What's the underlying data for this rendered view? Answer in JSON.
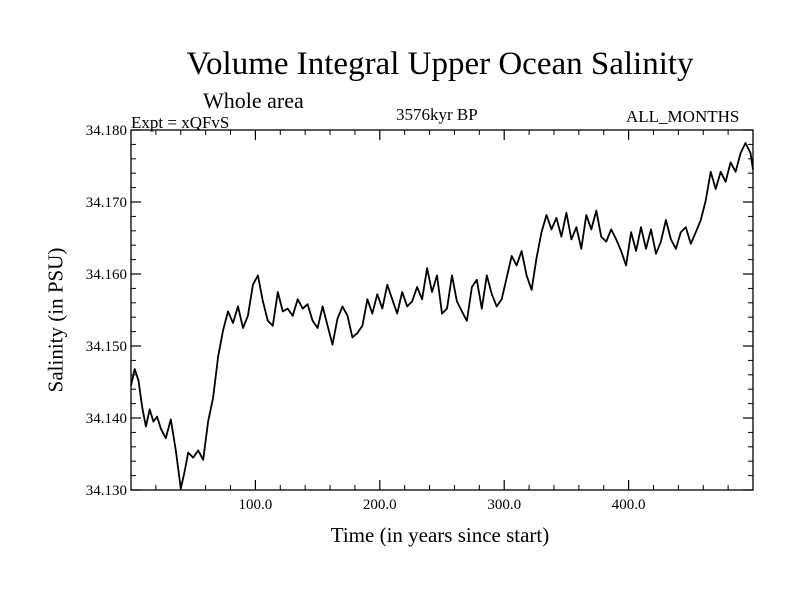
{
  "chart_data": {
    "type": "line",
    "title": "Volume Integral Upper Ocean Salinity",
    "subtitle": "Whole area",
    "experiment": "Expt = xQFvS",
    "period": "3576kyr BP",
    "months": "ALL_MONTHS",
    "xlabel": "Time (in years since start)",
    "ylabel": "Salinity (in PSU)",
    "xlim": [
      0,
      500
    ],
    "ylim": [
      34.13,
      34.18
    ],
    "xticks": [
      100,
      200,
      300,
      400
    ],
    "xtick_labels": [
      "100.0",
      "200.0",
      "300.0",
      "400.0"
    ],
    "yticks": [
      34.13,
      34.14,
      34.15,
      34.16,
      34.17,
      34.18
    ],
    "ytick_labels": [
      "34.130",
      "34.140",
      "34.150",
      "34.160",
      "34.170",
      "34.180"
    ],
    "series": [
      {
        "name": "Salinity",
        "x": [
          0,
          3,
          6,
          9,
          12,
          15,
          18,
          21,
          24,
          28,
          32,
          36,
          40,
          43,
          46,
          50,
          54,
          58,
          62,
          66,
          70,
          74,
          78,
          82,
          86,
          90,
          94,
          98,
          102,
          106,
          110,
          114,
          118,
          122,
          126,
          130,
          134,
          138,
          142,
          146,
          150,
          154,
          158,
          162,
          166,
          170,
          174,
          178,
          182,
          186,
          190,
          194,
          198,
          202,
          206,
          210,
          214,
          218,
          222,
          226,
          230,
          234,
          238,
          242,
          246,
          250,
          254,
          258,
          262,
          266,
          270,
          274,
          278,
          282,
          286,
          290,
          294,
          298,
          302,
          306,
          310,
          314,
          318,
          322,
          326,
          330,
          334,
          338,
          342,
          346,
          350,
          354,
          358,
          362,
          366,
          370,
          374,
          378,
          382,
          386,
          390,
          394,
          398,
          402,
          406,
          410,
          414,
          418,
          422,
          426,
          430,
          434,
          438,
          442,
          446,
          450,
          454,
          458,
          462,
          466,
          470,
          474,
          478,
          482,
          486,
          490,
          494,
          498,
          500
        ],
        "values": [
          34.1445,
          34.1468,
          34.1452,
          34.1415,
          34.1388,
          34.1412,
          34.1395,
          34.1402,
          34.1385,
          34.1372,
          34.1398,
          34.1355,
          34.1302,
          34.1325,
          34.1352,
          34.1345,
          34.1355,
          34.1342,
          34.1395,
          34.1428,
          34.1485,
          34.1522,
          34.1548,
          34.1532,
          34.1555,
          34.1525,
          34.1542,
          34.1585,
          34.1598,
          34.1562,
          34.1535,
          34.1528,
          34.1575,
          34.1548,
          34.1552,
          34.1542,
          34.1565,
          34.1552,
          34.1558,
          34.1535,
          34.1525,
          34.1555,
          34.1528,
          34.1502,
          34.1538,
          34.1555,
          34.1542,
          34.1512,
          34.1518,
          34.1528,
          34.1565,
          34.1545,
          34.1572,
          34.1552,
          34.1585,
          34.1565,
          34.1545,
          34.1575,
          34.1555,
          34.1562,
          34.1582,
          34.1565,
          34.1608,
          34.1575,
          34.1598,
          34.1545,
          34.1552,
          34.1598,
          34.1562,
          34.1548,
          34.1535,
          34.1582,
          34.1592,
          34.1552,
          34.1598,
          34.1572,
          34.1555,
          34.1565,
          34.1595,
          34.1625,
          34.1612,
          34.1632,
          34.1598,
          34.1578,
          34.1622,
          34.1658,
          34.1682,
          34.1662,
          34.1678,
          34.1652,
          34.1685,
          34.1648,
          34.1665,
          34.1635,
          34.1682,
          34.1662,
          34.1688,
          34.1652,
          34.1645,
          34.1662,
          34.1648,
          34.1632,
          34.1612,
          34.1658,
          34.1632,
          34.1665,
          34.1635,
          34.1662,
          34.1628,
          34.1645,
          34.1675,
          34.1648,
          34.1635,
          34.1658,
          34.1665,
          34.1642,
          34.1658,
          34.1675,
          34.1702,
          34.1742,
          34.1718,
          34.1742,
          34.1728,
          34.1755,
          34.1742,
          34.1768,
          34.1782,
          34.1768,
          34.1745
        ]
      }
    ]
  }
}
